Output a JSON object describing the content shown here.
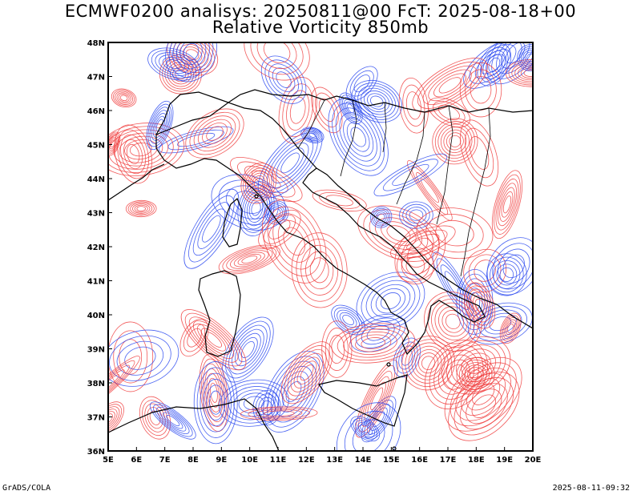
{
  "title_line1": "ECMWF0200 analisys: 20250811@00 FcT: 2025-08-18+00",
  "title_line2": "Relative Vorticity 850mb",
  "credit": "GrADS/COLA",
  "timestamp": "2025-08-11-09:32",
  "map": {
    "lon_range": [
      5,
      20
    ],
    "lat_range": [
      36,
      48
    ],
    "lon_ticks": [
      "5E",
      "6E",
      "7E",
      "8E",
      "9E",
      "10E",
      "11E",
      "12E",
      "13E",
      "14E",
      "15E",
      "16E",
      "17E",
      "18E",
      "19E",
      "20E"
    ],
    "lat_ticks": [
      "36N",
      "37N",
      "38N",
      "39N",
      "40N",
      "41N",
      "42N",
      "43N",
      "44N",
      "45N",
      "46N",
      "47N",
      "48N"
    ],
    "positive_color": "#f03c3c",
    "negative_color": "#2846f0",
    "coast_color": "#000000"
  }
}
